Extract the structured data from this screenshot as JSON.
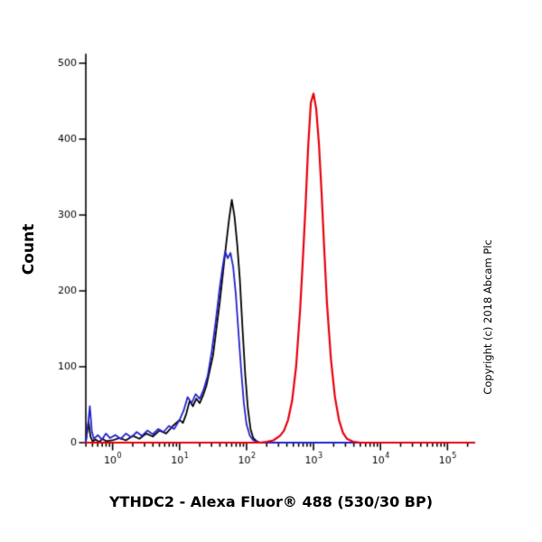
{
  "title": "YTHDC2 - Alexa Fluor® 488 (530/30 BP)",
  "ylabel": "Count",
  "copyright": "Copyright (c) 2018 Abcam Plc",
  "chart_data": {
    "type": "line",
    "subtype": "flow-cytometry-histogram",
    "title": "YTHDC2 - Alexa Fluor® 488 (530/30 BP)",
    "xlabel": "",
    "ylabel": "Count",
    "x_scale": "log10",
    "xlim_log": [
      -0.4,
      5.4
    ],
    "ylim": [
      0,
      500
    ],
    "yticks": [
      0,
      100,
      200,
      300,
      400,
      500
    ],
    "xticks_exponents": [
      0,
      1,
      2,
      3,
      4,
      5
    ],
    "grid": false,
    "legend": "none",
    "axis_color": "#000000",
    "series": [
      {
        "name": "control-black",
        "color": "#000000",
        "width": 1.8,
        "x_log": [
          -0.4,
          -0.36,
          -0.33,
          -0.3,
          -0.25,
          -0.2,
          -0.15,
          -0.1,
          0.0,
          0.1,
          0.2,
          0.3,
          0.4,
          0.5,
          0.6,
          0.7,
          0.8,
          0.9,
          1.0,
          1.05,
          1.1,
          1.15,
          1.2,
          1.25,
          1.3,
          1.35,
          1.4,
          1.45,
          1.5,
          1.55,
          1.6,
          1.65,
          1.7,
          1.74,
          1.78,
          1.82,
          1.86,
          1.9,
          1.94,
          1.98,
          2.02,
          2.06,
          2.1,
          2.15,
          2.2,
          2.6,
          3.0,
          4.0,
          5.4
        ],
        "y": [
          2,
          28,
          8,
          2,
          4,
          1,
          5,
          2,
          3,
          6,
          3,
          9,
          5,
          12,
          8,
          16,
          12,
          22,
          30,
          26,
          38,
          55,
          48,
          58,
          52,
          62,
          75,
          95,
          115,
          150,
          185,
          225,
          265,
          295,
          320,
          298,
          262,
          215,
          150,
          90,
          45,
          18,
          6,
          2,
          0,
          0,
          0,
          0,
          0
        ]
      },
      {
        "name": "control-blue",
        "color": "#2323cc",
        "width": 1.8,
        "x_log": [
          -0.4,
          -0.37,
          -0.34,
          -0.31,
          -0.28,
          -0.22,
          -0.16,
          -0.1,
          -0.04,
          0.04,
          0.12,
          0.2,
          0.28,
          0.36,
          0.44,
          0.52,
          0.6,
          0.68,
          0.76,
          0.84,
          0.92,
          1.0,
          1.06,
          1.12,
          1.18,
          1.24,
          1.3,
          1.36,
          1.42,
          1.48,
          1.54,
          1.6,
          1.64,
          1.68,
          1.72,
          1.76,
          1.8,
          1.84,
          1.88,
          1.92,
          1.96,
          2.0,
          2.05,
          2.1,
          2.2,
          3.0,
          5.4
        ],
        "y": [
          0,
          20,
          48,
          15,
          5,
          10,
          4,
          12,
          6,
          10,
          5,
          12,
          7,
          14,
          9,
          16,
          11,
          18,
          14,
          22,
          18,
          30,
          42,
          60,
          52,
          64,
          58,
          70,
          88,
          120,
          160,
          205,
          230,
          252,
          243,
          250,
          232,
          195,
          145,
          95,
          52,
          24,
          9,
          3,
          0,
          0,
          0
        ]
      },
      {
        "name": "ythdc2-alexa488-red",
        "color": "#e8000d",
        "width": 2.2,
        "x_log": [
          -0.4,
          2.2,
          2.3,
          2.4,
          2.5,
          2.56,
          2.62,
          2.68,
          2.74,
          2.8,
          2.84,
          2.88,
          2.92,
          2.96,
          3.0,
          3.04,
          3.08,
          3.12,
          3.16,
          3.2,
          3.26,
          3.32,
          3.38,
          3.44,
          3.5,
          3.6,
          3.7,
          5.4
        ],
        "y": [
          0,
          0,
          1,
          3,
          9,
          16,
          30,
          55,
          100,
          175,
          240,
          310,
          390,
          448,
          460,
          440,
          395,
          330,
          255,
          185,
          110,
          60,
          30,
          13,
          5,
          1,
          0,
          0
        ]
      }
    ]
  }
}
